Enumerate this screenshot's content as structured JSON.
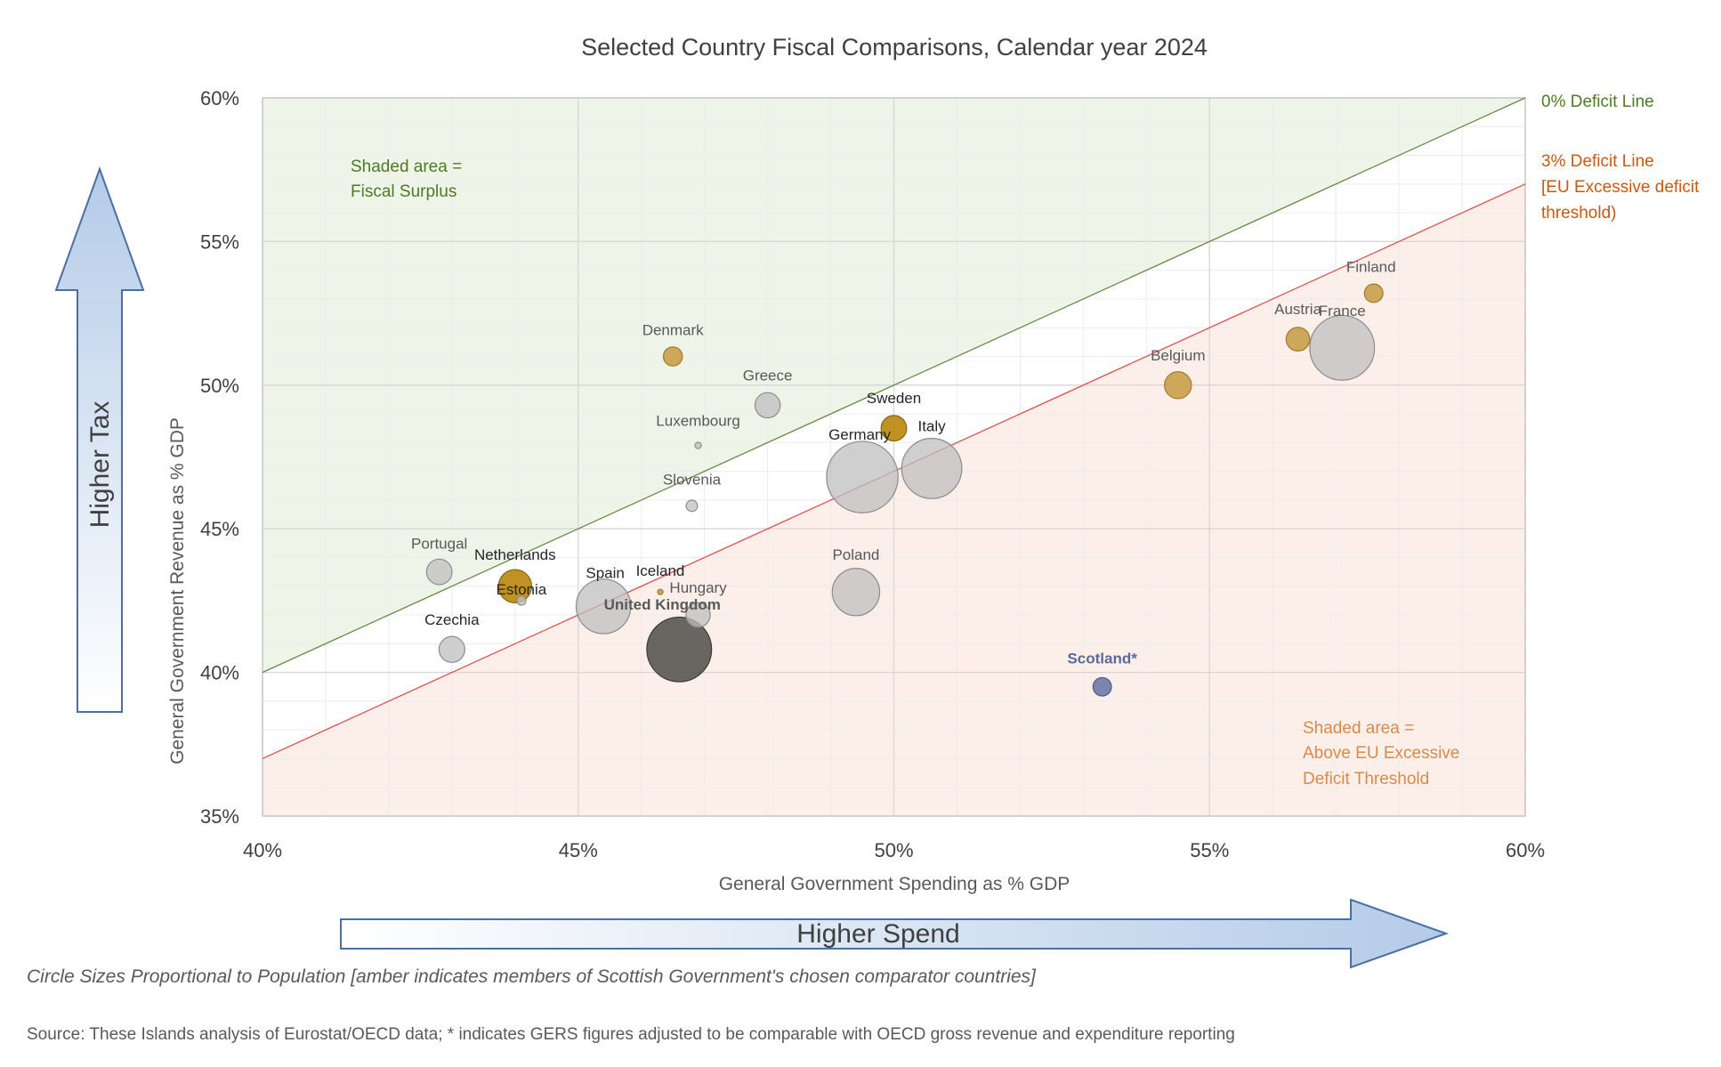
{
  "chart_data": {
    "type": "bubble",
    "title": "Selected Country Fiscal Comparisons, Calendar year 2024",
    "xlabel": "General Government Spending as % GDP",
    "ylabel": "General Government Revenue as % GDP",
    "xlim": [
      40,
      60
    ],
    "ylim": [
      35,
      60
    ],
    "x_ticks": [
      40,
      45,
      50,
      55,
      60
    ],
    "y_ticks": [
      35,
      40,
      45,
      50,
      55,
      60
    ],
    "tick_suffix": "%",
    "grid": true,
    "size_encoding": "population",
    "colors": {
      "amber": "#c9a04a",
      "amber_dark": "#b8860b",
      "grey": "#bfbfbf",
      "uk": "#595552",
      "scotland": "#6b7aa8",
      "surplus_fill": "#eef4e8",
      "deficit_fill": "#fcefe9",
      "zero_line": "#6a8a4a",
      "three_line": "#e05050",
      "arrow_fill": "#bcd1ea",
      "arrow_stroke": "#4a6fa0",
      "green_text": "#4e7a24",
      "orange_text": "#c55a11",
      "orange_light_text": "#d98a4a"
    },
    "reference_lines": [
      {
        "name": "0% Deficit Line",
        "y_equals_x_minus": 0
      },
      {
        "name": "3% Deficit Line",
        "y_equals_x_minus": 3,
        "note": "[EU Excessive deficit threshold)"
      }
    ],
    "points": [
      {
        "label": "Finland",
        "x": 57.6,
        "y": 53.2,
        "population": 5.6,
        "group": "amber"
      },
      {
        "label": "France",
        "x": 57.1,
        "y": 51.3,
        "population": 68.4,
        "group": "grey"
      },
      {
        "label": "Austria",
        "x": 56.4,
        "y": 51.6,
        "population": 9.1,
        "group": "amber"
      },
      {
        "label": "Belgium",
        "x": 54.5,
        "y": 50.0,
        "population": 11.8,
        "group": "amber"
      },
      {
        "label": "Denmark",
        "x": 46.5,
        "y": 51.0,
        "population": 5.9,
        "group": "amber"
      },
      {
        "label": "Greece",
        "x": 48.0,
        "y": 49.3,
        "population": 10.4,
        "group": "grey"
      },
      {
        "label": "Sweden",
        "x": 50.0,
        "y": 48.5,
        "population": 10.6,
        "group": "amber_dark"
      },
      {
        "label": "Luxembourg",
        "x": 46.9,
        "y": 47.9,
        "population": 0.67,
        "group": "grey"
      },
      {
        "label": "Germany",
        "x": 49.5,
        "y": 46.8,
        "population": 83.4,
        "group": "grey"
      },
      {
        "label": "Italy",
        "x": 50.6,
        "y": 47.1,
        "population": 59.0,
        "group": "grey"
      },
      {
        "label": "Slovenia",
        "x": 46.8,
        "y": 45.8,
        "population": 2.1,
        "group": "grey"
      },
      {
        "label": "Portugal",
        "x": 42.8,
        "y": 43.5,
        "population": 10.6,
        "group": "grey"
      },
      {
        "label": "Netherlands",
        "x": 44.0,
        "y": 43.0,
        "population": 17.9,
        "group": "amber_dark"
      },
      {
        "label": "Estonia",
        "x": 44.1,
        "y": 42.5,
        "population": 1.37,
        "group": "grey"
      },
      {
        "label": "Spain",
        "x": 45.4,
        "y": 42.3,
        "population": 48.6,
        "group": "grey"
      },
      {
        "label": "Iceland",
        "x": 46.3,
        "y": 42.8,
        "population": 0.39,
        "group": "amber"
      },
      {
        "label": "Hungary",
        "x": 46.9,
        "y": 42.0,
        "population": 9.6,
        "group": "grey"
      },
      {
        "label": "United Kingdom",
        "x": 46.6,
        "y": 40.8,
        "population": 68.3,
        "group": "uk"
      },
      {
        "label": "Czechia",
        "x": 43.0,
        "y": 40.8,
        "population": 10.9,
        "group": "grey"
      },
      {
        "label": "Poland",
        "x": 49.4,
        "y": 42.8,
        "population": 36.6,
        "group": "grey"
      },
      {
        "label": "Scotland*",
        "x": 53.3,
        "y": 39.5,
        "population": 5.5,
        "group": "scotland"
      }
    ],
    "annotations": {
      "zero_line_label": "0% Deficit Line",
      "three_line_label_1": "3% Deficit Line",
      "three_line_label_2": "[EU Excessive deficit",
      "three_line_label_3": "threshold)",
      "surplus_1": "Shaded area =",
      "surplus_2": "Fiscal Surplus",
      "deficit_1": "Shaded area =",
      "deficit_2": "Above EU Excessive",
      "deficit_3": "Deficit Threshold",
      "higher_tax": "Higher Tax",
      "higher_spend": "Higher Spend"
    },
    "footnote": "Circle Sizes Proportional to Population [amber indicates members of Scottish Government's chosen  comparator countries]",
    "source": "Source: These Islands analysis of Eurostat/OECD data; * indicates GERS figures adjusted to be comparable with OECD gross revenue and expenditure reporting"
  }
}
